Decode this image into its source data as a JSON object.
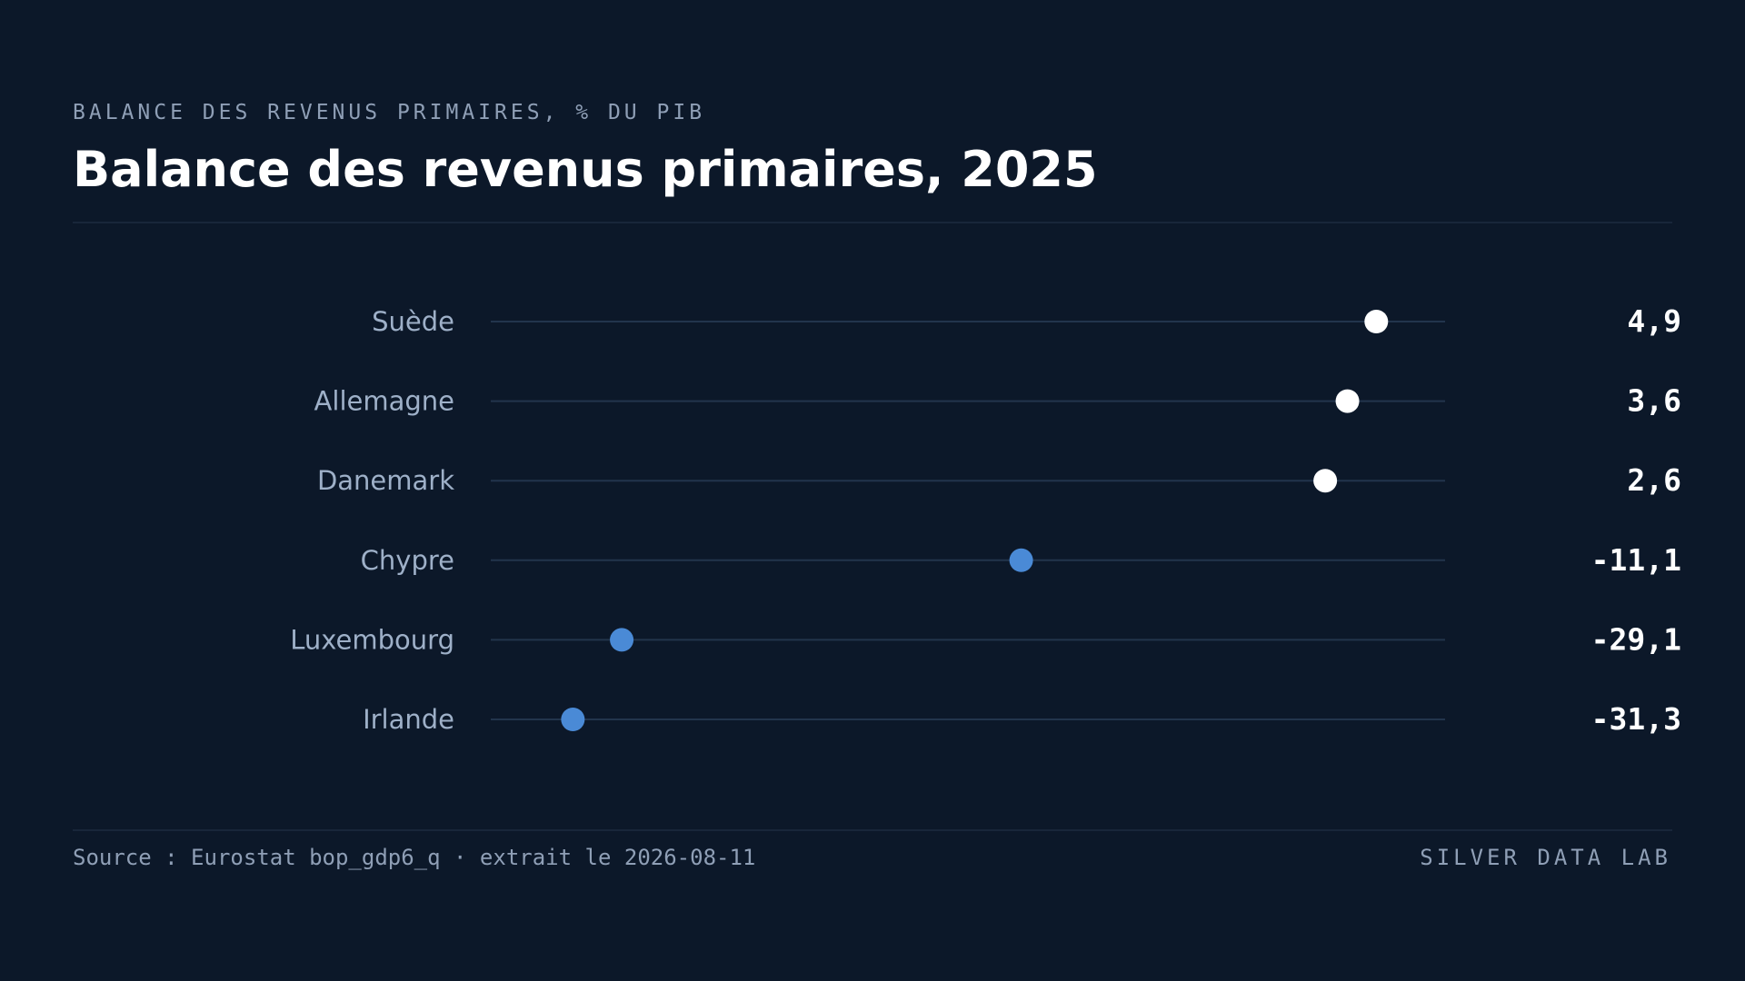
{
  "header": {
    "kicker": "BALANCE DES REVENUS PRIMAIRES, % DU PIB",
    "title": "Balance des revenus primaires, 2025"
  },
  "footer": {
    "source": "Source : Eurostat bop_gdp6_q · extrait le 2026-08-11",
    "brand": "SILVER DATA LAB"
  },
  "colors": {
    "background": "#0c1829",
    "positive_dot": "#ffffff",
    "negative_dot": "#4a8ad6",
    "track": "#22344c",
    "rule": "#18263a",
    "label": "#9eb0c8",
    "value": "#ffffff",
    "title": "#ffffff",
    "muted": "#8f9fb6"
  },
  "chart_data": {
    "type": "dot",
    "title": "Balance des revenus primaires, 2025",
    "categories": [
      "Suède",
      "Allemagne",
      "Danemark",
      "Chypre",
      "Luxembourg",
      "Irlande"
    ],
    "values": [
      4.9,
      3.6,
      2.6,
      -11.1,
      -29.1,
      -31.3
    ],
    "value_labels": [
      "4,9",
      "3,6",
      "2,6",
      "-11,1",
      "-29,1",
      "-31,3"
    ],
    "xlim": [
      -35,
      8
    ],
    "grid": false,
    "legend": "none"
  }
}
